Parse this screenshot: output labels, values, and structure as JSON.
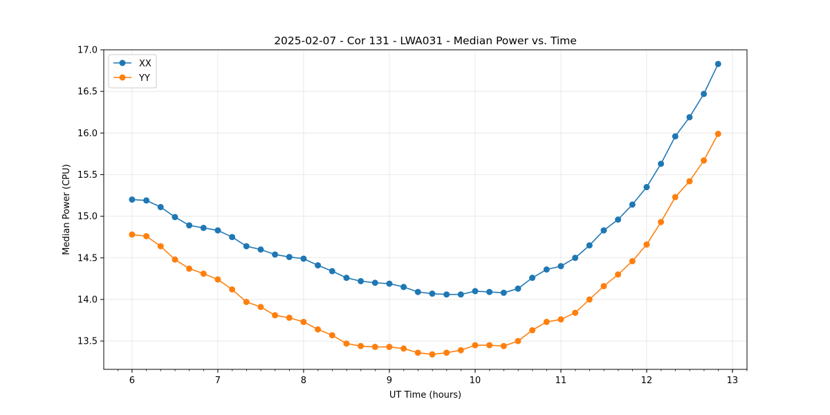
{
  "chart_data": {
    "type": "line",
    "title": "2025-02-07 - Cor 131 - LWA031 - Median Power vs. Time",
    "xlabel": "UT Time (hours)",
    "ylabel": "Median Power (CPU)",
    "xlim": [
      5.67,
      13.17
    ],
    "ylim": [
      13.16,
      17.0
    ],
    "x_ticks": [
      6,
      7,
      8,
      9,
      10,
      11,
      12,
      13
    ],
    "x_tick_labels": [
      "6",
      "7",
      "8",
      "9",
      "10",
      "11",
      "12",
      "13"
    ],
    "y_ticks": [
      13.5,
      14.0,
      14.5,
      15.0,
      15.5,
      16.0,
      16.5,
      17.0
    ],
    "y_tick_labels": [
      "13.5",
      "14.0",
      "14.5",
      "15.0",
      "15.5",
      "16.0",
      "16.5",
      "17.0"
    ],
    "x_minor_step": 0.1667,
    "grid": true,
    "legend_position": "top-left",
    "x": [
      6.0,
      6.1667,
      6.3333,
      6.5,
      6.6667,
      6.8333,
      7.0,
      7.1667,
      7.3333,
      7.5,
      7.6667,
      7.8333,
      8.0,
      8.1667,
      8.3333,
      8.5,
      8.6667,
      8.8333,
      9.0,
      9.1667,
      9.3333,
      9.5,
      9.6667,
      9.8333,
      10.0,
      10.1667,
      10.3333,
      10.5,
      10.6667,
      10.8333,
      11.0,
      11.1667,
      11.3333,
      11.5,
      11.6667,
      11.8333,
      12.0,
      12.1667,
      12.3333,
      12.5,
      12.6667,
      12.8333
    ],
    "series": [
      {
        "name": "XX",
        "color": "#1f77b4",
        "values": [
          15.2,
          15.19,
          15.11,
          14.99,
          14.89,
          14.86,
          14.83,
          14.75,
          14.64,
          14.6,
          14.54,
          14.51,
          14.49,
          14.41,
          14.34,
          14.26,
          14.22,
          14.2,
          14.19,
          14.15,
          14.09,
          14.07,
          14.06,
          14.06,
          14.1,
          14.09,
          14.08,
          14.13,
          14.26,
          14.36,
          14.4,
          14.5,
          14.65,
          14.83,
          14.96,
          15.14,
          15.35,
          15.63,
          15.96,
          16.19,
          16.47,
          16.83
        ]
      },
      {
        "name": "YY",
        "color": "#ff7f0e",
        "values": [
          14.78,
          14.76,
          14.64,
          14.48,
          14.37,
          14.31,
          14.24,
          14.12,
          13.97,
          13.91,
          13.81,
          13.78,
          13.73,
          13.64,
          13.57,
          13.47,
          13.44,
          13.43,
          13.43,
          13.41,
          13.36,
          13.34,
          13.36,
          13.39,
          13.45,
          13.45,
          13.44,
          13.5,
          13.63,
          13.73,
          13.76,
          13.84,
          14.0,
          14.16,
          14.3,
          14.46,
          14.66,
          14.93,
          15.23,
          15.42,
          15.67,
          15.99
        ]
      }
    ]
  }
}
